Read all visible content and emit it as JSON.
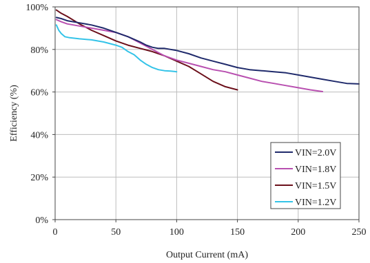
{
  "chart_data": {
    "type": "line",
    "title": "",
    "xlabel": "Output Current (mA)",
    "ylabel": "Efficiency (%)",
    "xlim": [
      0,
      250
    ],
    "ylim": [
      0,
      100
    ],
    "x_ticks": [
      0,
      50,
      100,
      150,
      200,
      250
    ],
    "y_ticks": [
      0,
      20,
      40,
      60,
      80,
      100
    ],
    "x_tick_labels": [
      "0",
      "50",
      "100",
      "150",
      "200",
      "250"
    ],
    "y_tick_labels": [
      "0%",
      "20%",
      "40%",
      "60%",
      "80%",
      "100%"
    ],
    "grid": true,
    "legend_position": "bottom-right",
    "series": [
      {
        "name": "VIN=2.0V",
        "color": "#1f2a6b",
        "points": [
          [
            1,
            95
          ],
          [
            5,
            94.5
          ],
          [
            10,
            93.5
          ],
          [
            20,
            92.5
          ],
          [
            30,
            91.5
          ],
          [
            40,
            90
          ],
          [
            50,
            88
          ],
          [
            60,
            86
          ],
          [
            70,
            83.5
          ],
          [
            75,
            82
          ],
          [
            80,
            81
          ],
          [
            85,
            80.5
          ],
          [
            90,
            80.5
          ],
          [
            95,
            80
          ],
          [
            100,
            79.5
          ],
          [
            110,
            78
          ],
          [
            120,
            76
          ],
          [
            130,
            74.5
          ],
          [
            140,
            73
          ],
          [
            150,
            71.5
          ],
          [
            160,
            70.5
          ],
          [
            170,
            70
          ],
          [
            180,
            69.5
          ],
          [
            190,
            69
          ],
          [
            200,
            68
          ],
          [
            210,
            67
          ],
          [
            220,
            66
          ],
          [
            230,
            65
          ],
          [
            240,
            64
          ],
          [
            250,
            63.8
          ]
        ]
      },
      {
        "name": "VIN=1.8V",
        "color": "#b84fb0",
        "points": [
          [
            1,
            94
          ],
          [
            5,
            93
          ],
          [
            10,
            92
          ],
          [
            20,
            91
          ],
          [
            30,
            90
          ],
          [
            40,
            89
          ],
          [
            50,
            88
          ],
          [
            60,
            86
          ],
          [
            70,
            83
          ],
          [
            80,
            80
          ],
          [
            90,
            77
          ],
          [
            100,
            75
          ],
          [
            110,
            73.5
          ],
          [
            120,
            72
          ],
          [
            130,
            70.5
          ],
          [
            140,
            69.5
          ],
          [
            150,
            68
          ],
          [
            160,
            66.5
          ],
          [
            170,
            65
          ],
          [
            180,
            64
          ],
          [
            190,
            63
          ],
          [
            200,
            62
          ],
          [
            210,
            61
          ],
          [
            220,
            60.2
          ]
        ]
      },
      {
        "name": "VIN=1.5V",
        "color": "#6b0f1a",
        "points": [
          [
            1,
            98.5
          ],
          [
            5,
            97
          ],
          [
            10,
            95.5
          ],
          [
            20,
            92
          ],
          [
            30,
            89
          ],
          [
            40,
            86.5
          ],
          [
            50,
            84
          ],
          [
            60,
            82
          ],
          [
            70,
            80.5
          ],
          [
            80,
            79
          ],
          [
            90,
            77
          ],
          [
            100,
            74.5
          ],
          [
            110,
            72
          ],
          [
            120,
            68.5
          ],
          [
            130,
            65
          ],
          [
            140,
            62.5
          ],
          [
            150,
            61
          ]
        ]
      },
      {
        "name": "VIN=1.2V",
        "color": "#33c3e8",
        "points": [
          [
            1,
            91.5
          ],
          [
            3,
            89
          ],
          [
            5,
            87.5
          ],
          [
            8,
            86
          ],
          [
            12,
            85.5
          ],
          [
            20,
            85
          ],
          [
            30,
            84.5
          ],
          [
            40,
            83.5
          ],
          [
            50,
            82
          ],
          [
            55,
            81
          ],
          [
            60,
            79
          ],
          [
            65,
            77.5
          ],
          [
            70,
            75
          ],
          [
            75,
            73
          ],
          [
            80,
            71.5
          ],
          [
            85,
            70.5
          ],
          [
            90,
            70
          ],
          [
            95,
            69.8
          ],
          [
            100,
            69.5
          ]
        ]
      }
    ]
  }
}
